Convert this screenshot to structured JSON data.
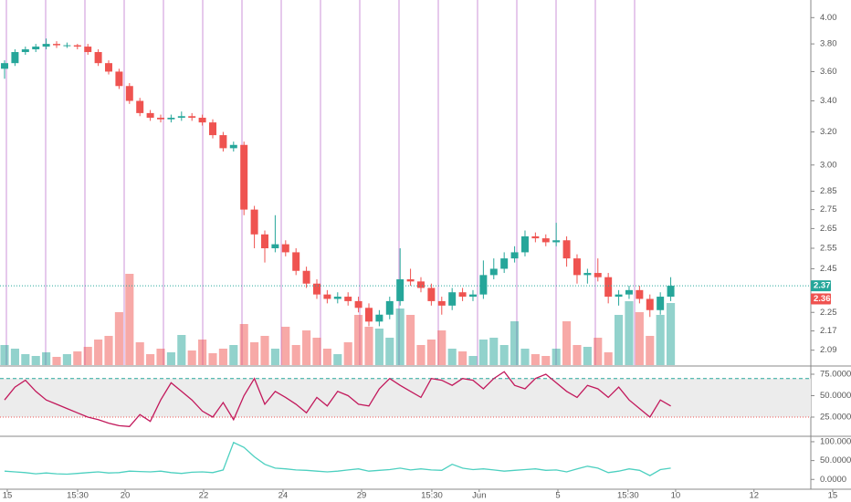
{
  "chart_data": [
    {
      "type": "candlestick",
      "log": true,
      "up_color": "#26a69a",
      "down_color": "#ef5350",
      "ylim": [
        2.03,
        4.14
      ],
      "yticks": [
        {
          "value": 4,
          "label": "4.00"
        },
        {
          "value": 3.8,
          "label": "3.80"
        },
        {
          "value": 3.6,
          "label": "3.60"
        },
        {
          "value": 3.4,
          "label": "3.40"
        },
        {
          "value": 3.2,
          "label": "3.20"
        },
        {
          "value": 3,
          "label": "3.00"
        },
        2.85,
        2.75,
        2.65,
        2.55,
        2.45,
        2.25,
        2.17,
        2.09
      ],
      "price_labels": [
        {
          "value": 2.37,
          "color": "#26a69a"
        },
        {
          "value": 2.36,
          "color": "#ef5350"
        }
      ],
      "open": [
        3.62,
        3.66,
        3.74,
        3.76,
        3.78,
        3.8,
        3.79,
        3.79,
        3.78,
        3.74,
        3.66,
        3.6,
        3.5,
        3.4,
        3.32,
        3.29,
        3.28,
        3.29,
        3.3,
        3.29,
        3.26,
        3.18,
        3.1,
        3.12,
        2.75,
        2.62,
        2.55,
        2.57,
        2.53,
        2.44,
        2.38,
        2.33,
        2.31,
        2.32,
        2.3,
        2.27,
        2.21,
        2.24,
        2.3,
        2.4,
        2.39,
        2.36,
        2.3,
        2.28,
        2.34,
        2.32,
        2.33,
        2.42,
        2.45,
        2.5,
        2.53,
        2.61,
        2.6,
        2.58,
        2.59,
        2.5,
        2.42,
        2.43,
        2.41,
        2.32,
        2.33,
        2.35,
        2.31,
        2.26,
        2.32
      ],
      "high": [
        3.68,
        3.76,
        3.78,
        3.8,
        3.84,
        3.82,
        3.81,
        3.8,
        3.8,
        3.76,
        3.68,
        3.62,
        3.52,
        3.42,
        3.34,
        3.31,
        3.31,
        3.33,
        3.32,
        3.31,
        3.28,
        3.2,
        3.14,
        3.14,
        2.77,
        2.64,
        2.72,
        2.59,
        2.55,
        2.46,
        2.4,
        2.35,
        2.34,
        2.34,
        2.32,
        2.29,
        2.26,
        2.32,
        2.55,
        2.45,
        2.41,
        2.38,
        2.32,
        2.36,
        2.36,
        2.35,
        2.49,
        2.5,
        2.53,
        2.56,
        2.64,
        2.63,
        2.62,
        2.68,
        2.61,
        2.52,
        2.45,
        2.5,
        2.43,
        2.35,
        2.37,
        2.37,
        2.33,
        2.34,
        2.41
      ],
      "low": [
        3.55,
        3.64,
        3.72,
        3.74,
        3.76,
        3.77,
        3.77,
        3.76,
        3.72,
        3.64,
        3.58,
        3.48,
        3.38,
        3.3,
        3.27,
        3.26,
        3.26,
        3.27,
        3.27,
        3.24,
        3.16,
        3.08,
        3.08,
        2.72,
        2.55,
        2.48,
        2.53,
        2.51,
        2.42,
        2.36,
        2.31,
        2.29,
        2.29,
        2.28,
        2.25,
        2.19,
        2.19,
        2.22,
        2.28,
        2.37,
        2.34,
        2.28,
        2.24,
        2.26,
        2.3,
        2.3,
        2.31,
        2.4,
        2.43,
        2.48,
        2.51,
        2.58,
        2.56,
        2.56,
        2.46,
        2.38,
        2.38,
        2.39,
        2.29,
        2.28,
        2.31,
        2.29,
        2.23,
        2.24,
        2.3
      ],
      "close": [
        3.66,
        3.74,
        3.76,
        3.78,
        3.8,
        3.79,
        3.79,
        3.78,
        3.74,
        3.66,
        3.6,
        3.5,
        3.4,
        3.32,
        3.29,
        3.28,
        3.29,
        3.3,
        3.29,
        3.26,
        3.18,
        3.1,
        3.12,
        2.75,
        2.62,
        2.55,
        2.57,
        2.53,
        2.44,
        2.38,
        2.33,
        2.31,
        2.32,
        2.3,
        2.27,
        2.21,
        2.24,
        2.3,
        2.4,
        2.39,
        2.36,
        2.3,
        2.28,
        2.34,
        2.32,
        2.33,
        2.42,
        2.45,
        2.5,
        2.53,
        2.61,
        2.6,
        2.58,
        2.59,
        2.5,
        2.42,
        2.43,
        2.41,
        2.32,
        2.33,
        2.35,
        2.31,
        2.26,
        2.32,
        2.37
      ],
      "volume_ylim": [
        0,
        100
      ],
      "volume": [
        22,
        18,
        12,
        10,
        14,
        9,
        12,
        15,
        20,
        28,
        32,
        58,
        100,
        25,
        12,
        18,
        14,
        33,
        16,
        28,
        13,
        18,
        22,
        45,
        25,
        32,
        18,
        42,
        22,
        38,
        30,
        18,
        12,
        25,
        55,
        42,
        40,
        30,
        62,
        55,
        22,
        28,
        38,
        18,
        15,
        10,
        28,
        30,
        22,
        48,
        18,
        12,
        10,
        18,
        48,
        22,
        20,
        30,
        14,
        55,
        70,
        58,
        32,
        55,
        68
      ]
    },
    {
      "type": "line",
      "color": "#c2185b",
      "ylim": [
        3.7,
        83.5
      ],
      "yticks": [
        {
          "value": 75,
          "label": "75.0000"
        },
        {
          "value": 50,
          "label": "50.0000"
        },
        {
          "value": 25,
          "label": "25.0000"
        }
      ],
      "upper_band": 70,
      "lower_band": 25,
      "values": [
        45,
        60,
        68,
        55,
        45,
        40,
        35,
        30,
        25,
        22,
        18,
        15,
        14,
        28,
        20,
        45,
        65,
        55,
        45,
        32,
        25,
        42,
        22,
        50,
        70,
        40,
        55,
        48,
        40,
        30,
        48,
        38,
        55,
        50,
        40,
        38,
        58,
        70,
        62,
        55,
        48,
        70,
        68,
        62,
        70,
        68,
        58,
        70,
        78,
        62,
        58,
        70,
        75,
        65,
        55,
        48,
        62,
        58,
        48,
        60,
        45,
        35,
        25,
        45,
        38
      ]
    },
    {
      "type": "line",
      "color": "#4dd0c0",
      "ylim": [
        -26,
        112
      ],
      "yticks": [
        {
          "value": 100,
          "label": "100.0000"
        },
        {
          "value": 50,
          "label": "50.0000"
        },
        {
          "value": 0,
          "label": "0.0000"
        }
      ],
      "values": [
        22,
        20,
        18,
        15,
        17,
        15,
        14,
        16,
        18,
        20,
        17,
        18,
        22,
        21,
        20,
        22,
        18,
        16,
        19,
        20,
        18,
        25,
        98,
        85,
        60,
        40,
        30,
        28,
        25,
        24,
        22,
        20,
        22,
        25,
        28,
        22,
        24,
        26,
        30,
        25,
        28,
        25,
        24,
        40,
        30,
        26,
        28,
        25,
        22,
        24,
        26,
        28,
        24,
        25,
        20,
        28,
        35,
        30,
        18,
        22,
        28,
        24,
        10,
        26,
        30
      ],
      "xlim": [
        -0.44,
        77.46
      ],
      "xticks": [
        {
          "value": 0.26,
          "label": "15"
        },
        {
          "value": 7.02,
          "label": "15:30"
        },
        {
          "value": 11.58,
          "label": "20"
        },
        {
          "value": 19.12,
          "label": "22"
        },
        {
          "value": 26.75,
          "label": "24"
        },
        {
          "value": 34.3,
          "label": "29"
        },
        {
          "value": 41.05,
          "label": "15:30"
        },
        {
          "value": 45.6,
          "label": "Jun"
        },
        {
          "value": 53.16,
          "label": "5"
        },
        {
          "value": 59.9,
          "label": "15:30"
        },
        {
          "value": 64.47,
          "label": "10"
        },
        {
          "value": 72.0,
          "label": "12"
        },
        {
          "value": 79.56,
          "label": "15"
        }
      ]
    }
  ]
}
